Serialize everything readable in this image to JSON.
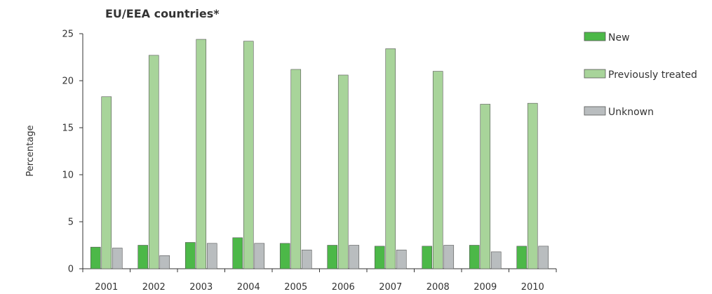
{
  "chart_data": {
    "type": "bar",
    "title": "EU/EEA countries*",
    "xlabel": "",
    "ylabel": "Percentage",
    "categories": [
      "2001",
      "2002",
      "2003",
      "2004",
      "2005",
      "2006",
      "2007",
      "2008",
      "2009",
      "2010"
    ],
    "ylim": [
      0,
      25
    ],
    "yticks": [
      "0",
      "5",
      "10",
      "15",
      "20",
      "25"
    ],
    "grid": false,
    "legend_position": "right",
    "series": [
      {
        "name": "New",
        "color": "#4cb848",
        "values": [
          2.3,
          2.5,
          2.8,
          3.3,
          2.7,
          2.5,
          2.4,
          2.4,
          2.5,
          2.4
        ]
      },
      {
        "name": "Previously treated",
        "color": "#a8d49a",
        "values": [
          18.3,
          22.7,
          24.4,
          24.2,
          21.2,
          20.6,
          23.4,
          21.0,
          17.5,
          17.6
        ]
      },
      {
        "name": "Unknown",
        "color": "#b9bdbf",
        "values": [
          2.2,
          1.4,
          2.7,
          2.7,
          2.0,
          2.5,
          2.0,
          2.5,
          1.8,
          2.4
        ]
      }
    ]
  }
}
